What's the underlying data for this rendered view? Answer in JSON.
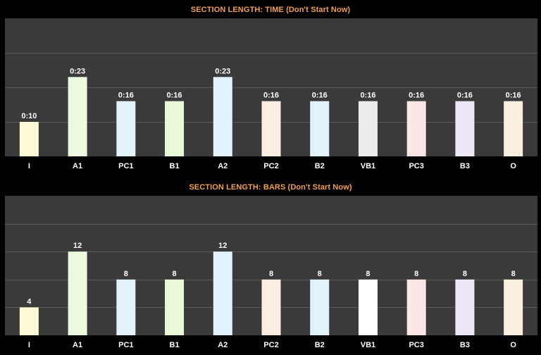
{
  "colors": {
    "background": "#000000",
    "plot_bg": "#3a3a3a",
    "gridline": "#5a5a5a",
    "title": "#f2a04a",
    "label": "#ffffff"
  },
  "chart_data": [
    {
      "type": "bar",
      "title": "SECTION LENGTH: TIME (Don't Start Now)",
      "categories": [
        "I",
        "A1",
        "PC1",
        "B1",
        "A2",
        "PC2",
        "B2",
        "VB1",
        "PC3",
        "B3",
        "O"
      ],
      "values": [
        10,
        23,
        16,
        16,
        23,
        16,
        16,
        16,
        16,
        16,
        16
      ],
      "data_labels": [
        "0:10",
        "0:23",
        "0:16",
        "0:16",
        "0:23",
        "0:16",
        "0:16",
        "0:16",
        "0:16",
        "0:16",
        "0:16"
      ],
      "bar_colors": [
        "#fdfbd6",
        "#ecf8df",
        "#e3f1fb",
        "#e9f8d9",
        "#e3f2fd",
        "#fbeee0",
        "#e3f1fb",
        "#ececec",
        "#fbe5e5",
        "#ede7f7",
        "#fbf0e0"
      ],
      "ylim": [
        0,
        40
      ],
      "grid": true,
      "gridline_step": 10
    },
    {
      "type": "bar",
      "title": "SECTION LENGTH: BARS (Don't Start Now)",
      "categories": [
        "I",
        "A1",
        "PC1",
        "B1",
        "A2",
        "PC2",
        "B2",
        "VB1",
        "PC3",
        "B3",
        "O"
      ],
      "values": [
        4,
        12,
        8,
        8,
        12,
        8,
        8,
        8,
        8,
        8,
        8
      ],
      "data_labels": [
        "4",
        "12",
        "8",
        "8",
        "12",
        "8",
        "8",
        "8",
        "8",
        "8",
        "8"
      ],
      "bar_colors": [
        "#fdfbd6",
        "#ecf8df",
        "#e3f1fb",
        "#e9f8d9",
        "#e3f2fd",
        "#fbeee0",
        "#e3f1fb",
        "#ffffff",
        "#fbe5e5",
        "#ede7f7",
        "#fbf0e0"
      ],
      "ylim": [
        0,
        20
      ],
      "grid": true,
      "gridline_step": 4
    }
  ]
}
